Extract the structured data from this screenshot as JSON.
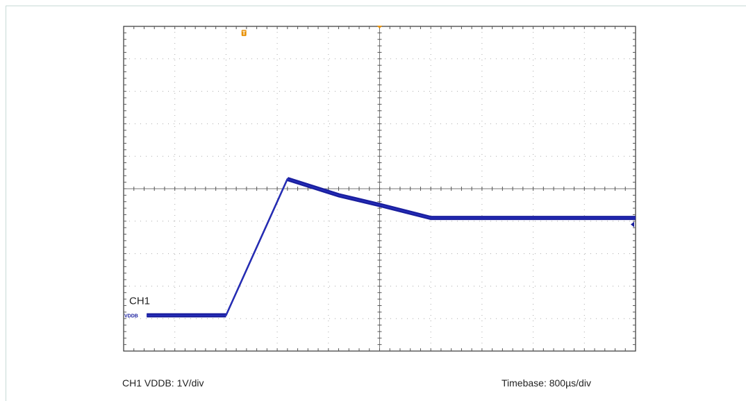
{
  "chart_data": {
    "type": "line",
    "grid": true,
    "x_divisions": 10,
    "y_divisions": 10,
    "series": [
      {
        "name": "CH1",
        "color": "#1a1f9e",
        "x_div": [
          0.45,
          2.0,
          3.2,
          4.2,
          5.0,
          6.0,
          7.0,
          8.0,
          9.0,
          10.0
        ],
        "y_div": [
          1.1,
          1.1,
          5.3,
          4.8,
          4.5,
          4.1,
          4.1,
          4.1,
          4.1,
          4.1
        ]
      }
    ],
    "trace_label": "CH1",
    "ground_marker": "VDDB",
    "caption_left": "CH1 VDDB: 1V/div",
    "caption_right": "Timebase: 800µs/div",
    "trigger_marker_color": "#e8920a",
    "trigger_marker_text": "T"
  }
}
